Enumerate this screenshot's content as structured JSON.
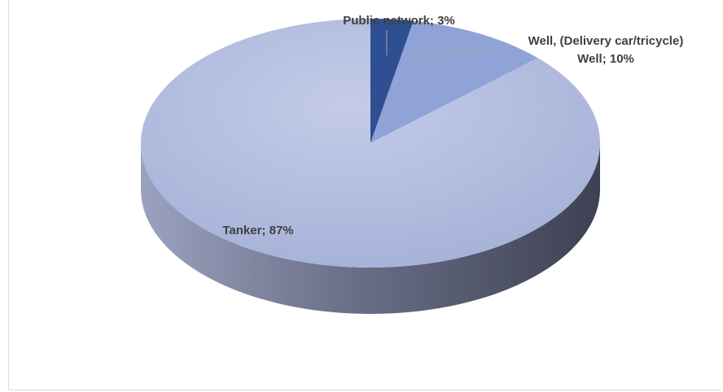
{
  "chart_data": {
    "type": "pie",
    "title": "",
    "style": "3d",
    "categories": [
      "Public network",
      "Well, (Delivery car/tricycle) Well",
      "Tanker"
    ],
    "values": [
      3,
      10,
      87
    ],
    "unit": "%",
    "data_labels": [
      [
        "Public network; 3%"
      ],
      [
        "Well, (Delivery car/tricycle)",
        "Well; 10%"
      ],
      [
        "Tanker; 87%"
      ]
    ],
    "colors": [
      "#2f4f93",
      "#8fa3d6",
      "#b4bfe0"
    ],
    "side_color": "#545a6e",
    "legend": "none"
  }
}
